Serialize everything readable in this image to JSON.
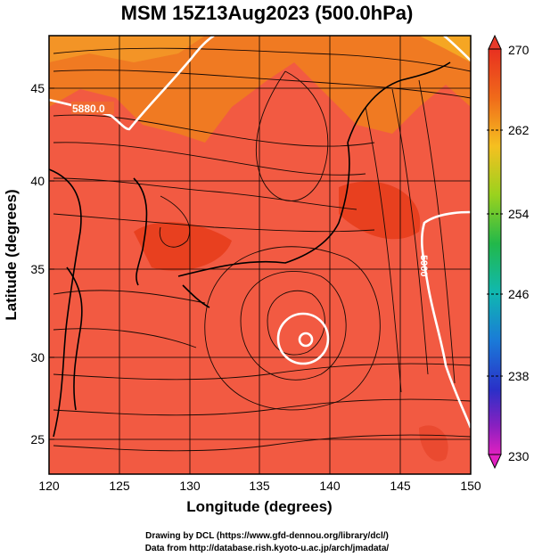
{
  "title": "MSM 15Z13Aug2023 (500.0hPa)",
  "xaxis": {
    "label": "Longitude (degrees)",
    "range": [
      120,
      150
    ],
    "ticks": [
      "120",
      "125",
      "130",
      "135",
      "140",
      "145",
      "150"
    ]
  },
  "yaxis": {
    "label": "Latitude  (degrees)",
    "range": [
      22.5,
      47.5
    ],
    "ticks": [
      "25",
      "30",
      "35",
      "40",
      "45"
    ]
  },
  "colorbar": {
    "ticks": [
      "270",
      "262",
      "254",
      "246",
      "238",
      "230"
    ],
    "min": 230,
    "max": 270
  },
  "contours": {
    "label_5900": "5900",
    "label_5880": "5880.0"
  },
  "colors": {
    "field_main": "#f25a42",
    "field_warm": "#e8401f",
    "field_orange": "#f5a623",
    "contour": "#ffffff",
    "coast": "#000000"
  },
  "credits": {
    "line1": "Drawing by DCL (https://www.gfd-dennou.org/library/dcl/)",
    "line2": "Data from http://database.rish.kyoto-u.ac.jp/arch/jmadata/"
  }
}
